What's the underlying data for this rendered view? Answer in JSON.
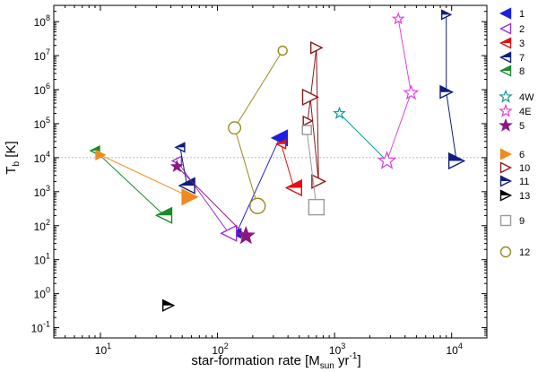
{
  "chart_data": {
    "type": "scatter",
    "title": "",
    "xlabel_parts": {
      "main": "star-formation rate [M",
      "sub": "sun",
      "mid": " yr",
      "sup": "-1",
      "end": "]"
    },
    "ylabel_parts": {
      "main": "T",
      "sub": "b",
      "end": " [K]"
    },
    "xscale": "log",
    "yscale": "log",
    "xlim": [
      4,
      20000
    ],
    "ylim": [
      0.05,
      300000000
    ],
    "xticks": [
      {
        "value": 10,
        "base": "10",
        "exp": "1"
      },
      {
        "value": 100,
        "base": "10",
        "exp": "2"
      },
      {
        "value": 1000,
        "base": "10",
        "exp": "3"
      },
      {
        "value": 10000,
        "base": "10",
        "exp": "4"
      }
    ],
    "yticks": [
      {
        "value": 0.1,
        "base": "10",
        "exp": "-1"
      },
      {
        "value": 1,
        "base": "10",
        "exp": "0"
      },
      {
        "value": 10,
        "base": "10",
        "exp": "1"
      },
      {
        "value": 100,
        "base": "10",
        "exp": "2"
      },
      {
        "value": 1000,
        "base": "10",
        "exp": "3"
      },
      {
        "value": 10000,
        "base": "10",
        "exp": "4"
      },
      {
        "value": 100000,
        "base": "10",
        "exp": "5"
      },
      {
        "value": 1000000,
        "base": "10",
        "exp": "6"
      },
      {
        "value": 10000000,
        "base": "10",
        "exp": "7"
      },
      {
        "value": 100000000,
        "base": "10",
        "exp": "8"
      }
    ],
    "reference_line": {
      "y": 10000,
      "style": "dotted",
      "color": "#bbbbbb"
    },
    "series": [
      {
        "name": "1",
        "color": "#1f1fe0",
        "marker": "tri-left",
        "fill": "full",
        "points": [
          [
            145,
            60
          ],
          [
            340,
            38000
          ]
        ]
      },
      {
        "name": "2",
        "color": "#9a30d6",
        "marker": "tri-left",
        "fill": "open",
        "points": [
          [
            45,
            8000
          ],
          [
            125,
            60
          ]
        ]
      },
      {
        "name": "3",
        "color": "#e01010",
        "marker": "tri-left",
        "fill": "half",
        "points": [
          [
            350,
            25000
          ],
          [
            450,
            1300
          ]
        ]
      },
      {
        "name": "7",
        "color": "#0f1d80",
        "marker": "tri-left",
        "fill": "half",
        "points": [
          [
            48,
            20000
          ],
          [
            55,
            1500
          ]
        ]
      },
      {
        "name": "8",
        "color": "#1a8a2a",
        "marker": "tri-left",
        "fill": "half",
        "points": [
          [
            9,
            16000
          ],
          [
            35,
            200
          ]
        ]
      },
      {
        "name": "4W",
        "color": "#139a9a",
        "marker": "star",
        "fill": "open",
        "points": [
          [
            1100,
            200000
          ],
          [
            2800,
            8000
          ]
        ]
      },
      {
        "name": "4E",
        "color": "#e040e0",
        "marker": "star",
        "fill": "open",
        "points": [
          [
            3500,
            120000000
          ],
          [
            4500,
            800000
          ],
          [
            2800,
            8000
          ]
        ]
      },
      {
        "name": "5",
        "color": "#8a1880",
        "marker": "star",
        "fill": "full",
        "points": [
          [
            45,
            5500
          ],
          [
            175,
            50
          ]
        ]
      },
      {
        "name": "6",
        "color": "#f08a20",
        "marker": "tri-right",
        "fill": "full",
        "points": [
          [
            10,
            12000
          ],
          [
            58,
            700
          ]
        ]
      },
      {
        "name": "10",
        "color": "#8a1a1a",
        "marker": "tri-right",
        "fill": "open",
        "points": [
          [
            590,
            120000
          ],
          [
            700,
            17000000
          ],
          [
            730,
            2000
          ],
          [
            620,
            600000
          ]
        ]
      },
      {
        "name": "11",
        "color": "#101c80",
        "marker": "tri-right",
        "fill": "half",
        "points": [
          [
            9000,
            160000000
          ],
          [
            9000,
            850000
          ],
          [
            11000,
            8000
          ]
        ]
      },
      {
        "name": "13",
        "color": "#000000",
        "marker": "tri-right",
        "fill": "half",
        "points": [
          [
            38,
            0.45
          ]
        ]
      },
      {
        "name": "9",
        "color": "#999999",
        "marker": "square",
        "fill": "open",
        "points": [
          [
            580,
            65000
          ],
          [
            700,
            350
          ]
        ]
      },
      {
        "name": "12",
        "color": "#9a8a20",
        "marker": "circle",
        "fill": "open",
        "points": [
          [
            360,
            14000000
          ],
          [
            140,
            75000
          ],
          [
            220,
            380
          ]
        ]
      }
    ]
  }
}
